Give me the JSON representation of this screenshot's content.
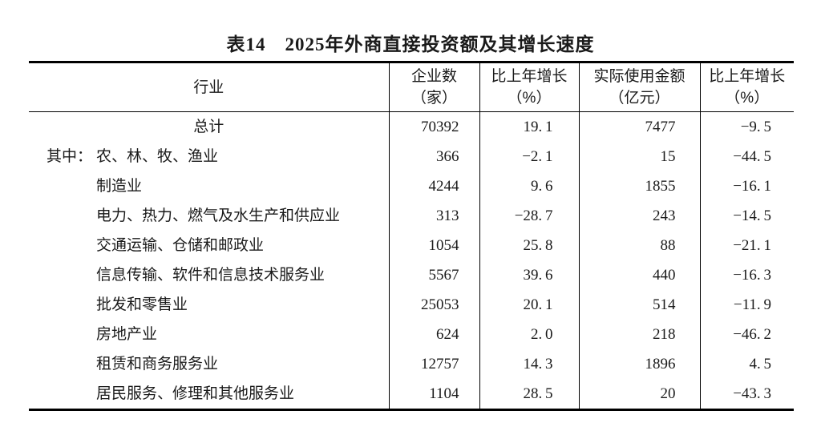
{
  "title": "表14　2025年外商直接投资额及其增长速度",
  "colors": {
    "text": "#1a1a1a",
    "rule": "#000000",
    "background": "#ffffff"
  },
  "table": {
    "col_headers": [
      {
        "line1": "行业",
        "line2": ""
      },
      {
        "line1": "企业数",
        "line2": "（家）"
      },
      {
        "line1": "比上年增长",
        "line2": "（%）"
      },
      {
        "line1": "实际使用金额",
        "line2": "（亿元）"
      },
      {
        "line1": "比上年增长",
        "line2": "（%）"
      }
    ],
    "rows": [
      {
        "prefix": "",
        "industry": "总计",
        "center": true,
        "enterprises": "70392",
        "growth1": "19.1",
        "amount": "7477",
        "growth2": "-9.5"
      },
      {
        "prefix": "其中：",
        "industry": "农、林、牧、渔业",
        "center": false,
        "enterprises": "366",
        "growth1": "-2.1",
        "amount": "15",
        "growth2": "-44.5"
      },
      {
        "prefix": "",
        "industry": "制造业",
        "center": false,
        "enterprises": "4244",
        "growth1": "9.6",
        "amount": "1855",
        "growth2": "-16.1"
      },
      {
        "prefix": "",
        "industry": "电力、热力、燃气及水生产和供应业",
        "center": false,
        "enterprises": "313",
        "growth1": "-28.7",
        "amount": "243",
        "growth2": "-14.5"
      },
      {
        "prefix": "",
        "industry": "交通运输、仓储和邮政业",
        "center": false,
        "enterprises": "1054",
        "growth1": "25.8",
        "amount": "88",
        "growth2": "-21.1"
      },
      {
        "prefix": "",
        "industry": "信息传输、软件和信息技术服务业",
        "center": false,
        "enterprises": "5567",
        "growth1": "39.6",
        "amount": "440",
        "growth2": "-16.3"
      },
      {
        "prefix": "",
        "industry": "批发和零售业",
        "center": false,
        "enterprises": "25053",
        "growth1": "20.1",
        "amount": "514",
        "growth2": "-11.9"
      },
      {
        "prefix": "",
        "industry": "房地产业",
        "center": false,
        "enterprises": "624",
        "growth1": "2.0",
        "amount": "218",
        "growth2": "-46.2"
      },
      {
        "prefix": "",
        "industry": "租赁和商务服务业",
        "center": false,
        "enterprises": "12757",
        "growth1": "14.3",
        "amount": "1896",
        "growth2": "4.5"
      },
      {
        "prefix": "",
        "industry": "居民服务、修理和其他服务业",
        "center": false,
        "enterprises": "1104",
        "growth1": "28.5",
        "amount": "20",
        "growth2": "-43.3"
      }
    ]
  }
}
